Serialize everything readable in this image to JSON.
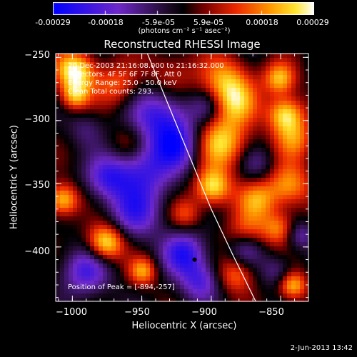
{
  "colorbar": {
    "ticks": [
      "-0.00029",
      "-0.00018",
      "-5.9e-05",
      "5.9e-05",
      "0.00018",
      "0.00029"
    ],
    "units_label": "(photons cm⁻² s⁻¹ asec⁻²)"
  },
  "title": "Reconstructed RHESSI Image",
  "info_lines": [
    "20-Dec-2003 21:16:08.000 to 21:16:32.000",
    "Detectors: 4F 5F 6F 7F 8F, Att 0",
    "Energy Range: 25.0 - 50.0 keV",
    "Clean    Total counts: 293."
  ],
  "peak_label": "Position of Peak = [-894,-257]",
  "footer_date": "2-Jun-2013 13:42",
  "chart_data": {
    "type": "heatmap",
    "title": "Reconstructed RHESSI Image",
    "xlabel": "Heliocentric X (arcsec)",
    "ylabel": "Heliocentric Y (arcsec)",
    "xlim": [
      -1012,
      -830
    ],
    "ylim": [
      -443,
      -247
    ],
    "x_ticks": [
      -1000,
      -950,
      -900,
      -850
    ],
    "y_ticks": [
      -250,
      -300,
      -350,
      -400
    ],
    "x_tick_labels": [
      "−1000",
      "−950",
      "−900",
      "−850"
    ],
    "y_tick_labels": [
      "−250",
      "−300",
      "−350",
      "−400"
    ],
    "colorbar_range": [
      -0.00029,
      0.00029
    ],
    "colormap": "blue-black-red-yellow-white",
    "peak": [
      -894,
      -257
    ],
    "marker": [
      -912,
      -410
    ],
    "limb_curve": [
      [
        -946,
        -247
      ],
      [
        -930,
        -290
      ],
      [
        -915,
        -330
      ],
      [
        -900,
        -370
      ],
      [
        -885,
        -405
      ],
      [
        -868,
        -443
      ]
    ]
  }
}
